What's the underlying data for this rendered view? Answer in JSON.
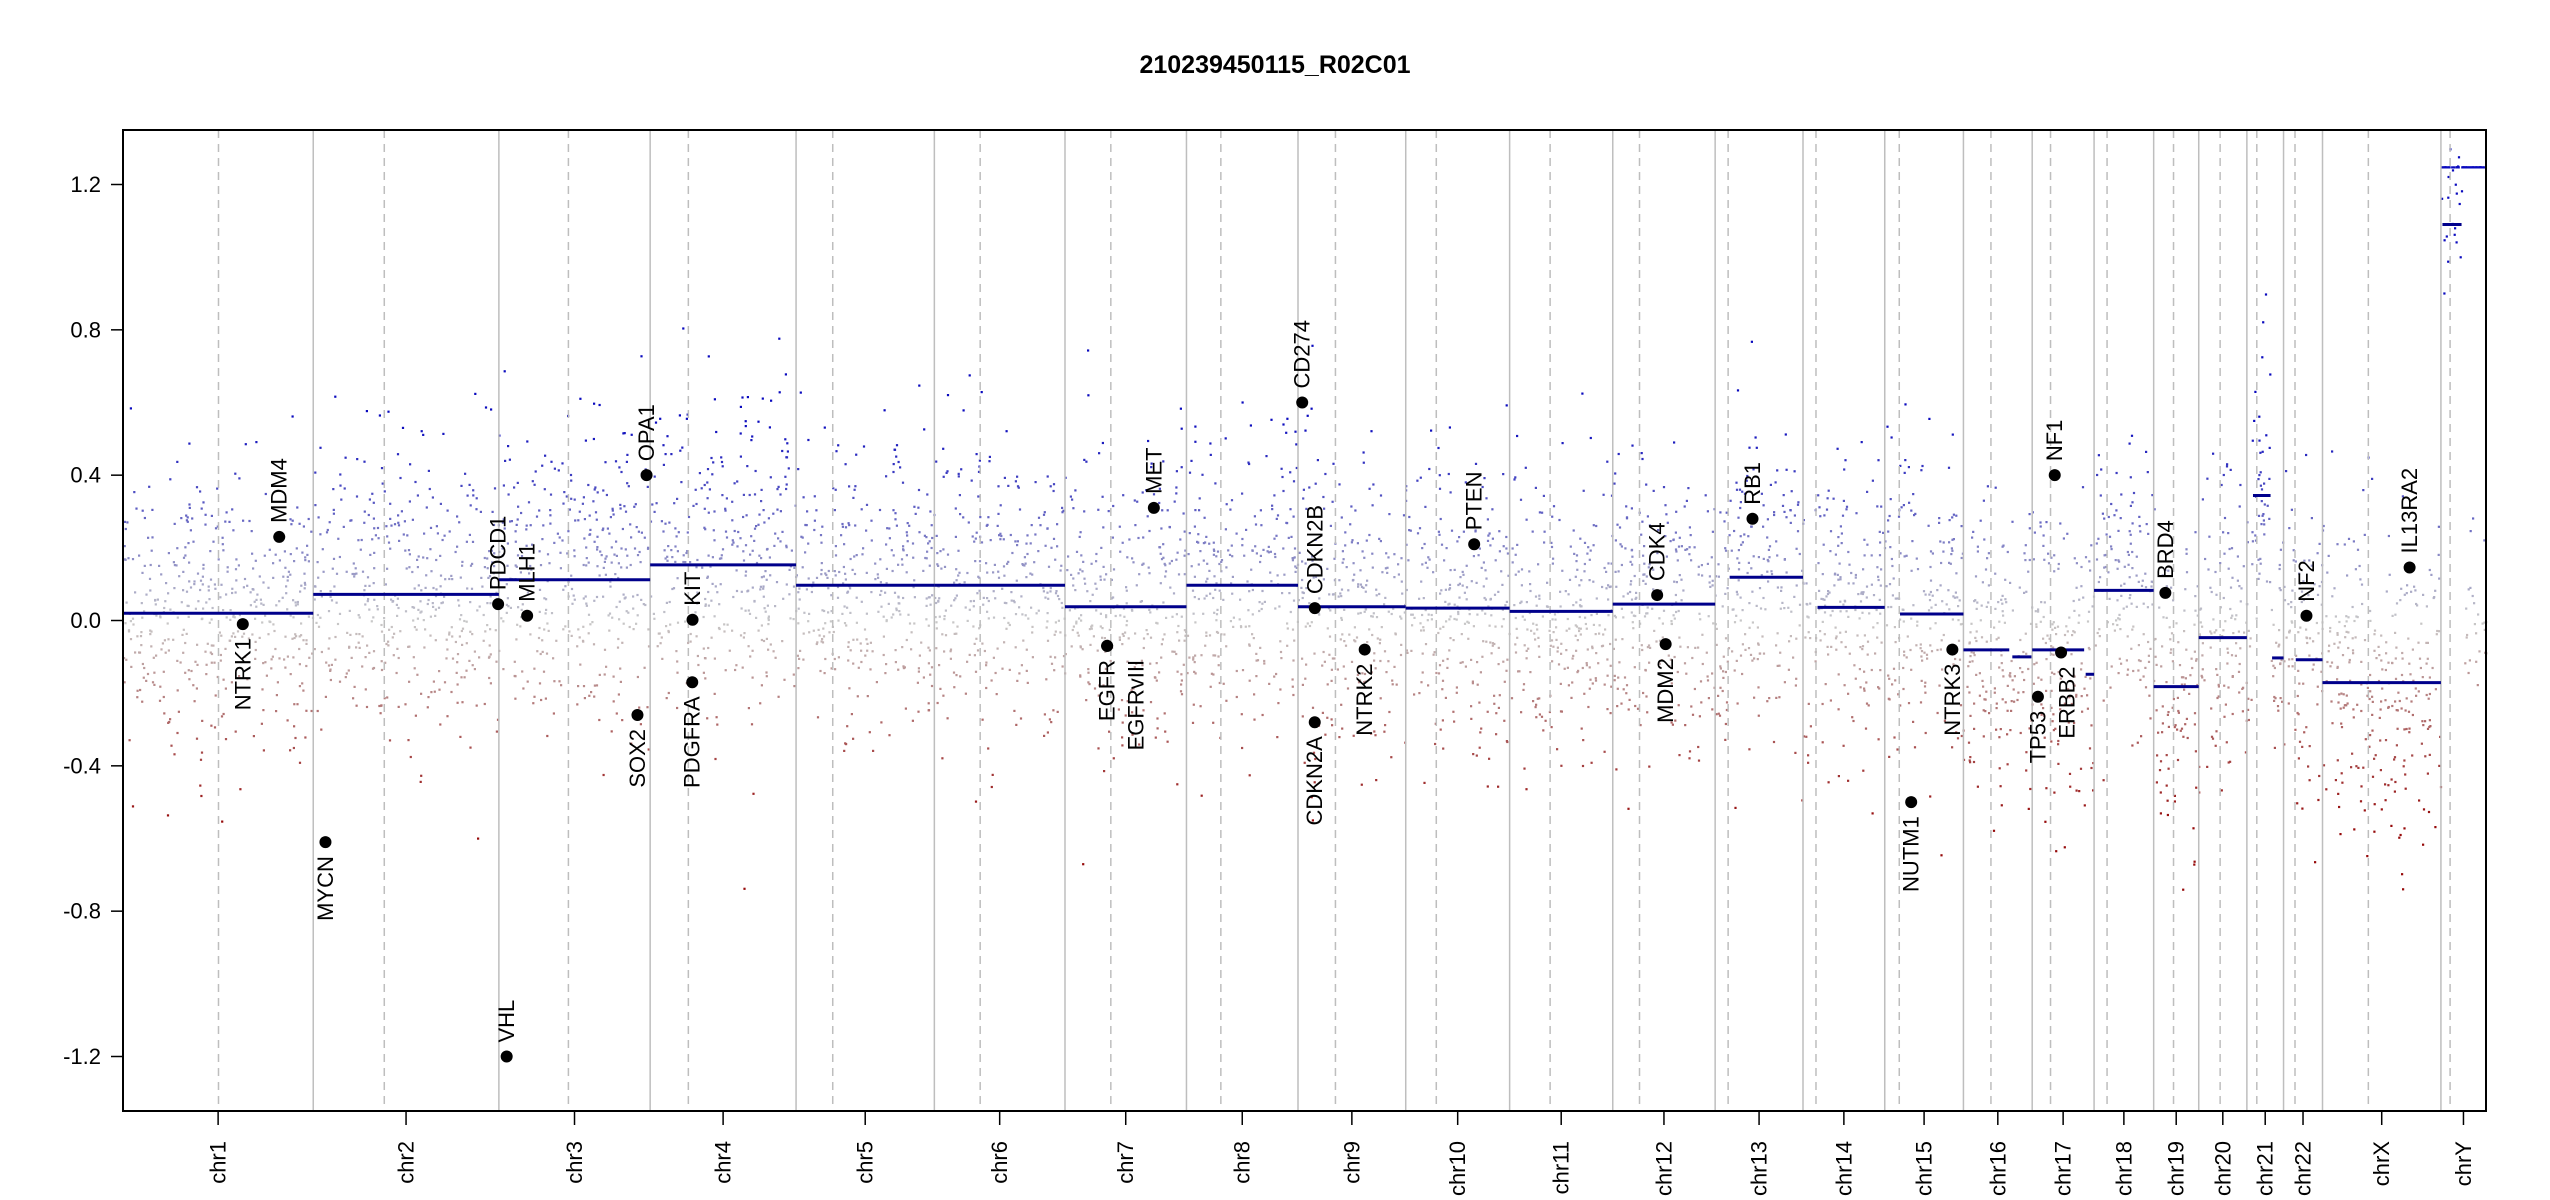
{
  "chart_data": {
    "type": "scatter",
    "title": "210239450115_R02C01",
    "xlabel": "",
    "ylabel": "",
    "ylim": [
      -1.35,
      1.35
    ],
    "yticks": [
      "-1.2",
      "-0.8",
      "-0.4",
      "0.0",
      "0.4",
      "0.8",
      "1.2"
    ],
    "grid": false,
    "chromosomes": [
      {
        "name": "chr1",
        "length": 249,
        "centromere": 125
      },
      {
        "name": "chr2",
        "length": 243,
        "centromere": 93
      },
      {
        "name": "chr3",
        "length": 198,
        "centromere": 91
      },
      {
        "name": "chr4",
        "length": 191,
        "centromere": 50
      },
      {
        "name": "chr5",
        "length": 181,
        "centromere": 48
      },
      {
        "name": "chr6",
        "length": 171,
        "centromere": 60
      },
      {
        "name": "chr7",
        "length": 159,
        "centromere": 60
      },
      {
        "name": "chr8",
        "length": 146,
        "centromere": 45
      },
      {
        "name": "chr9",
        "length": 141,
        "centromere": 49
      },
      {
        "name": "chr10",
        "length": 136,
        "centromere": 40
      },
      {
        "name": "chr11",
        "length": 135,
        "centromere": 53
      },
      {
        "name": "chr12",
        "length": 134,
        "centromere": 35
      },
      {
        "name": "chr13",
        "length": 115,
        "centromere": 17
      },
      {
        "name": "chr14",
        "length": 107,
        "centromere": 17
      },
      {
        "name": "chr15",
        "length": 103,
        "centromere": 19
      },
      {
        "name": "chr16",
        "length": 90,
        "centromere": 36
      },
      {
        "name": "chr17",
        "length": 81,
        "centromere": 24
      },
      {
        "name": "chr18",
        "length": 78,
        "centromere": 17
      },
      {
        "name": "chr19",
        "length": 59,
        "centromere": 26
      },
      {
        "name": "chr20",
        "length": 63,
        "centromere": 28
      },
      {
        "name": "chr21",
        "length": 48,
        "centromere": 13
      },
      {
        "name": "chr22",
        "length": 51,
        "centromere": 15
      },
      {
        "name": "chrX",
        "length": 155,
        "centromere": 60
      },
      {
        "name": "chrY",
        "length": 59,
        "centromere": 12
      }
    ],
    "segments": [
      {
        "chr": "chr1",
        "start": 0,
        "end": 249,
        "value": 0.02
      },
      {
        "chr": "chr2",
        "start": 0,
        "end": 243,
        "value": 0.072
      },
      {
        "chr": "chr3",
        "start": 0,
        "end": 198,
        "value": 0.112
      },
      {
        "chr": "chr4",
        "start": 0,
        "end": 191,
        "value": 0.153
      },
      {
        "chr": "chr5",
        "start": 0,
        "end": 181,
        "value": 0.097
      },
      {
        "chr": "chr6",
        "start": 0,
        "end": 171,
        "value": 0.097
      },
      {
        "chr": "chr7",
        "start": 0,
        "end": 159,
        "value": 0.038
      },
      {
        "chr": "chr8",
        "start": 0,
        "end": 146,
        "value": 0.097
      },
      {
        "chr": "chr9",
        "start": 0,
        "end": 141,
        "value": 0.038
      },
      {
        "chr": "chr10",
        "start": 0,
        "end": 136,
        "value": 0.034
      },
      {
        "chr": "chr11",
        "start": 0,
        "end": 135,
        "value": 0.025
      },
      {
        "chr": "chr12",
        "start": 0,
        "end": 134,
        "value": 0.045
      },
      {
        "chr": "chr13",
        "start": 19,
        "end": 115,
        "value": 0.119
      },
      {
        "chr": "chr14",
        "start": 19,
        "end": 107,
        "value": 0.036
      },
      {
        "chr": "chr15",
        "start": 20,
        "end": 103,
        "value": 0.018
      },
      {
        "chr": "chr16",
        "start": 0,
        "end": 60,
        "value": -0.081
      },
      {
        "chr": "chr16",
        "start": 64,
        "end": 89,
        "value": -0.1
      },
      {
        "chr": "chr17",
        "start": 0,
        "end": 68,
        "value": -0.081
      },
      {
        "chr": "chr17",
        "start": 70,
        "end": 81,
        "value": -0.148
      },
      {
        "chr": "chr18",
        "start": 0,
        "end": 78,
        "value": 0.083
      },
      {
        "chr": "chr19",
        "start": 0,
        "end": 59,
        "value": -0.182
      },
      {
        "chr": "chr20",
        "start": 0,
        "end": 63,
        "value": -0.047
      },
      {
        "chr": "chr21",
        "start": 8,
        "end": 31,
        "value": 0.344
      },
      {
        "chr": "chr21",
        "start": 33,
        "end": 48,
        "value": -0.103
      },
      {
        "chr": "chr22",
        "start": 16,
        "end": 51,
        "value": -0.108
      },
      {
        "chr": "chrX",
        "start": 0,
        "end": 155,
        "value": -0.171
      },
      {
        "chr": "chrY",
        "start": 2,
        "end": 27,
        "value": 1.09
      }
    ],
    "genes": [
      {
        "name": "NTRK1",
        "chr": "chr1",
        "pos": 156.8,
        "value": -0.01,
        "side": "below"
      },
      {
        "name": "MDM4",
        "chr": "chr1",
        "pos": 204.5,
        "value": 0.23,
        "side": "above"
      },
      {
        "name": "MYCN",
        "chr": "chr2",
        "pos": 16,
        "value": -0.61,
        "side": "below"
      },
      {
        "name": "PDCD1",
        "chr": "chr2",
        "pos": 242,
        "value": 0.045,
        "side": "above"
      },
      {
        "name": "VHL",
        "chr": "chr3",
        "pos": 10.2,
        "value": -1.2,
        "side": "above"
      },
      {
        "name": "MLH1",
        "chr": "chr3",
        "pos": 37,
        "value": 0.013,
        "side": "above"
      },
      {
        "name": "SOX2",
        "chr": "chr3",
        "pos": 181.4,
        "value": -0.26,
        "side": "below"
      },
      {
        "name": "OPA1",
        "chr": "chr3",
        "pos": 193.3,
        "value": 0.4,
        "side": "above"
      },
      {
        "name": "KIT",
        "chr": "chr4",
        "pos": 55.5,
        "value": 0.002,
        "side": "above"
      },
      {
        "name": "PDGFRA",
        "chr": "chr4",
        "pos": 55.1,
        "value": -0.17,
        "side": "below"
      },
      {
        "name": "EGFR",
        "chr": "chr7",
        "pos": 55.1,
        "value": -0.07,
        "side": "below"
      },
      {
        "name": "EGFRvIII",
        "chr": "chr7",
        "pos": 55.2,
        "value": -0.07,
        "side": "below"
      },
      {
        "name": "MET",
        "chr": "chr7",
        "pos": 116.3,
        "value": 0.31,
        "side": "above"
      },
      {
        "name": "CD274",
        "chr": "chr9",
        "pos": 5.5,
        "value": 0.6,
        "side": "above"
      },
      {
        "name": "CDKN2B",
        "chr": "chr9",
        "pos": 22,
        "value": 0.034,
        "side": "above"
      },
      {
        "name": "CDKN2A",
        "chr": "chr9",
        "pos": 21.9,
        "value": -0.28,
        "side": "below"
      },
      {
        "name": "NTRK2",
        "chr": "chr9",
        "pos": 87.3,
        "value": -0.08,
        "side": "below"
      },
      {
        "name": "PTEN",
        "chr": "chr10",
        "pos": 89.6,
        "value": 0.21,
        "side": "above"
      },
      {
        "name": "CDK4",
        "chr": "chr12",
        "pos": 58.1,
        "value": 0.07,
        "side": "above"
      },
      {
        "name": "MDM2",
        "chr": "chr12",
        "pos": 69.2,
        "value": -0.065,
        "side": "below"
      },
      {
        "name": "RB1",
        "chr": "chr13",
        "pos": 48.9,
        "value": 0.28,
        "side": "above"
      },
      {
        "name": "NUTM1",
        "chr": "chr15",
        "pos": 34.6,
        "value": -0.5,
        "side": "below"
      },
      {
        "name": "NTRK3",
        "chr": "chr15",
        "pos": 88.5,
        "value": -0.08,
        "side": "below"
      },
      {
        "name": "TP53",
        "chr": "chr17",
        "pos": 7.5,
        "value": -0.21,
        "side": "below"
      },
      {
        "name": "NF1",
        "chr": "chr17",
        "pos": 29.5,
        "value": 0.4,
        "side": "above"
      },
      {
        "name": "ERBB2",
        "chr": "chr17",
        "pos": 37.8,
        "value": -0.088,
        "side": "below"
      },
      {
        "name": "BRD4",
        "chr": "chr19",
        "pos": 15.3,
        "value": 0.076,
        "side": "above"
      },
      {
        "name": "NF2",
        "chr": "chr22",
        "pos": 30,
        "value": 0.013,
        "side": "above"
      },
      {
        "name": "IL13RA2",
        "chr": "chrX",
        "pos": 114,
        "value": 0.146,
        "side": "above"
      }
    ],
    "colors": {
      "segment": "#00008B",
      "gain": "#1a1aa8",
      "loss": "#a01010",
      "neutral": "#c8c8c8",
      "boundary": "#bebebe",
      "gene": "#000000"
    }
  }
}
